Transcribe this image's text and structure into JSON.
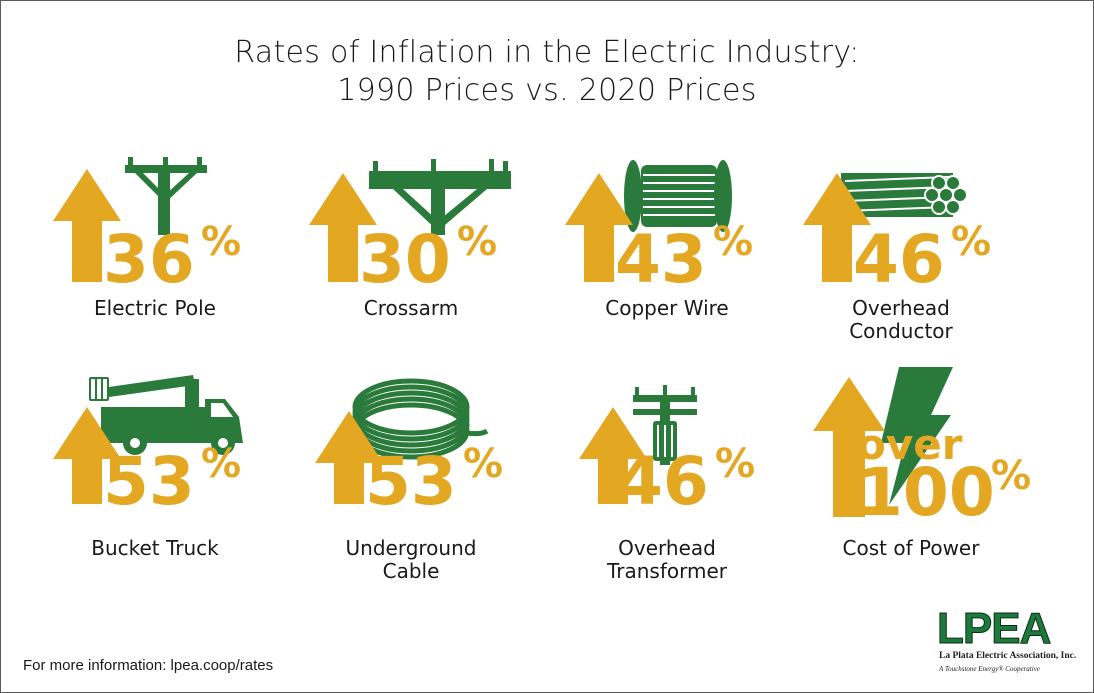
{
  "header": {
    "title_line1": "Rates of Inflation in the Electric Industry:",
    "title_line2": "1990 Prices vs. 2020 Prices"
  },
  "colors": {
    "arrow_gold": "#e3a721",
    "icon_green": "#2a7a3b",
    "text_dark": "#1a1a1a"
  },
  "items": [
    {
      "label": "Electric Pole",
      "value": "36",
      "unit": "%",
      "prefix": "",
      "icon": "utility-pole-icon"
    },
    {
      "label": "Crossarm",
      "value": "30",
      "unit": "%",
      "prefix": "",
      "icon": "crossarm-icon"
    },
    {
      "label": "Copper Wire",
      "value": "43",
      "unit": "%",
      "prefix": "",
      "icon": "wire-spool-icon"
    },
    {
      "label": "Overhead\nConductor",
      "value": "46",
      "unit": "%",
      "prefix": "",
      "icon": "conductor-bundle-icon"
    },
    {
      "label": "Bucket Truck",
      "value": "53",
      "unit": "%",
      "prefix": "",
      "icon": "bucket-truck-icon"
    },
    {
      "label": "Underground\nCable",
      "value": "53",
      "unit": "%",
      "prefix": "",
      "icon": "cable-coil-icon"
    },
    {
      "label": "Overhead\nTransformer",
      "value": "46",
      "unit": "%",
      "prefix": "",
      "icon": "pole-transformer-icon"
    },
    {
      "label": "Cost of Power",
      "value": "100",
      "unit": "%",
      "prefix": "over",
      "icon": "lightning-bolt-icon"
    }
  ],
  "footer": {
    "text": "For more information: lpea.coop/rates"
  },
  "logo": {
    "wordmark": "LPEA",
    "name": "La Plata Electric Association, Inc.",
    "tagline": "A Touchstone Energy® Cooperative"
  }
}
